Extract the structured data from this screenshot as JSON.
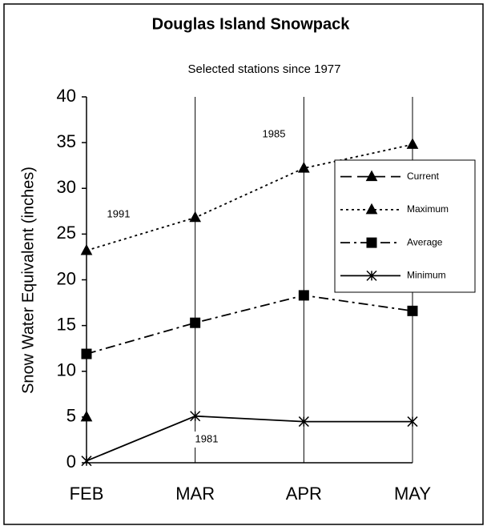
{
  "chart_data": {
    "type": "line",
    "title": "Douglas Island Snowpack",
    "subtitle": "Selected stations since 1977",
    "y_label": "Snow Water Equivalent (inches)",
    "categories": [
      "FEB",
      "MAR",
      "APR",
      "MAY"
    ],
    "series": [
      {
        "name": "Current",
        "color": "#000000",
        "dash": "dashed",
        "marker": "triangle",
        "values": [
          5.0,
          null,
          null,
          null
        ]
      },
      {
        "name": "Maximum",
        "color": "#000000",
        "dash": "dotted",
        "marker": "triangle",
        "values": [
          23.2,
          26.8,
          32.2,
          34.8
        ]
      },
      {
        "name": "Average",
        "color": "#000000",
        "dash": "dashdot",
        "marker": "square",
        "values": [
          11.9,
          15.3,
          18.3,
          16.6
        ]
      },
      {
        "name": "Minimum",
        "color": "#000000",
        "dash": "solid",
        "marker": "star",
        "values": [
          0.2,
          5.1,
          4.5,
          4.5
        ]
      }
    ],
    "annotations": [
      "1991",
      "1985",
      "1981"
    ],
    "ylim": [
      0,
      40
    ],
    "yticks": [
      0,
      5,
      10,
      15,
      20,
      25,
      30,
      35,
      40
    ],
    "grid": true,
    "legend": "right"
  }
}
